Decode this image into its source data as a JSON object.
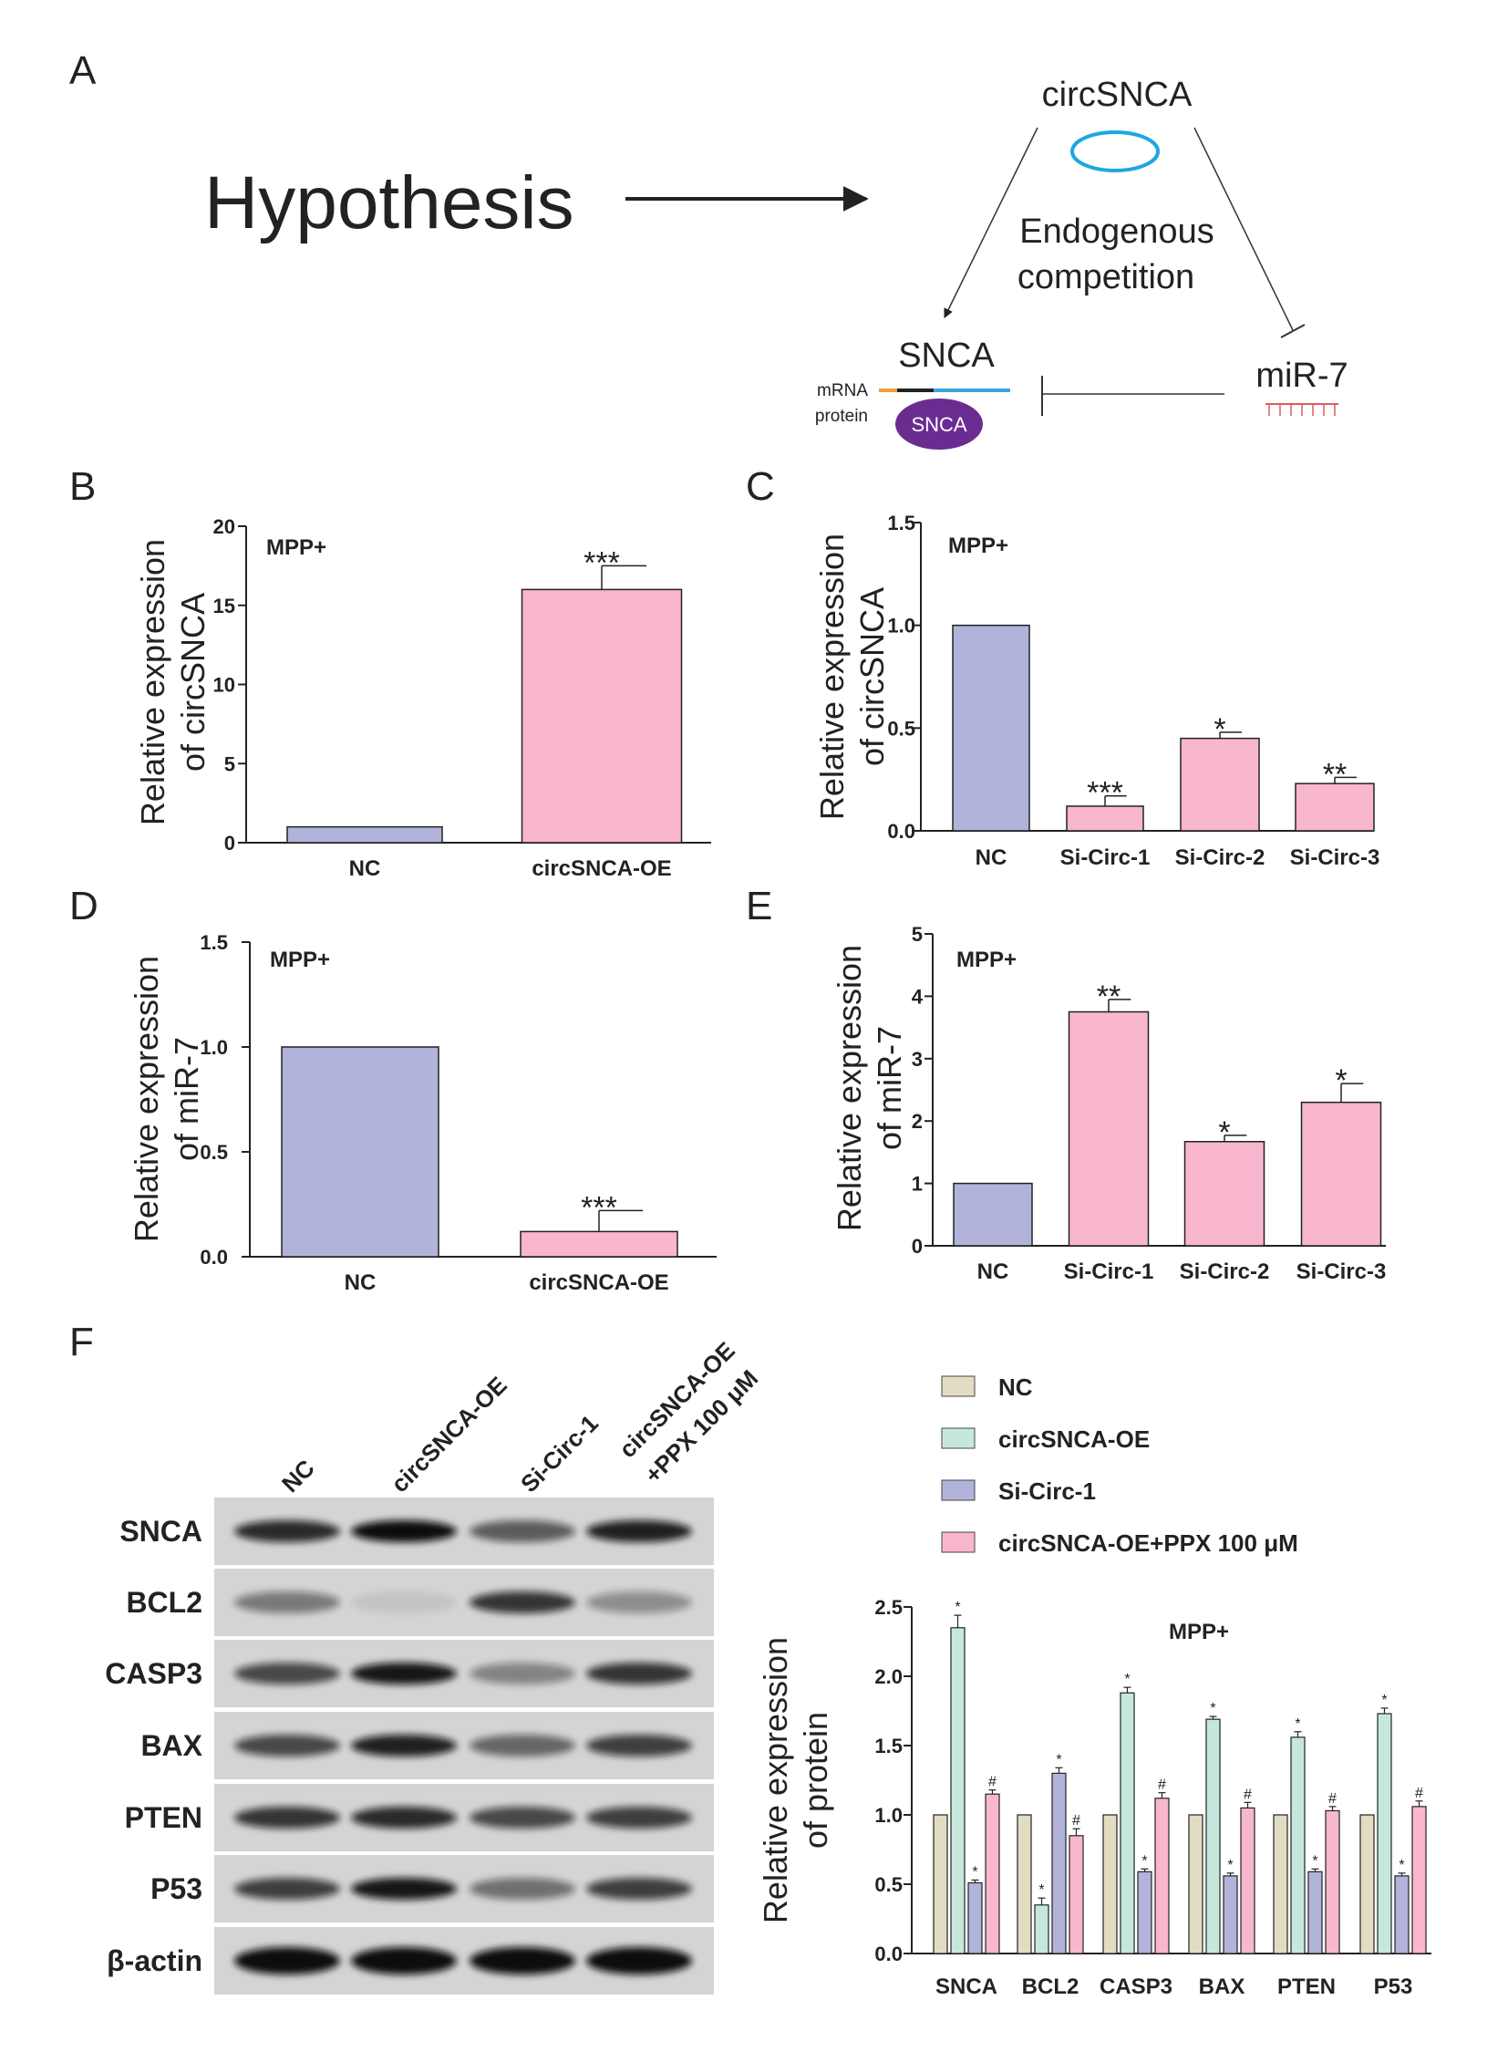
{
  "panel_letters": {
    "A": "A",
    "B": "B",
    "C": "C",
    "D": "D",
    "E": "E",
    "F": "F"
  },
  "hypothesis": {
    "title": "Hypothesis",
    "circ": "circSNCA",
    "competition_line1": "Endogenous",
    "competition_line2": "competition",
    "snca": "SNCA",
    "mirna": "miR-7",
    "mrna_label": "mRNA",
    "protein_label": "protein",
    "protein_blob": "SNCA",
    "colors": {
      "circ_ring": "#1ea7e1",
      "protein": "#6b2c91",
      "mrna_left": "#f5a033",
      "mrna_right": "#3aa6dd",
      "mirna_teeth": "#e05a5a"
    }
  },
  "colors": {
    "nc_bar": "#b1b3da",
    "treat_bar": "#f8b6cf",
    "nc_f": "#e2dcc3",
    "oe_f": "#c6e8dc",
    "si_f": "#b1b3da",
    "ppx_f": "#f8b6cf"
  },
  "chart_data": [
    {
      "id": "B",
      "type": "bar",
      "title": "MPP+",
      "ylabel_lines": [
        "Relative expression",
        "of circSNCA"
      ],
      "categories": [
        "NC",
        "circSNCA-OE"
      ],
      "values": [
        1.0,
        16.0
      ],
      "errors": [
        0,
        1.5
      ],
      "significance": [
        "",
        "***"
      ],
      "ylim": [
        0,
        20
      ],
      "yticks": [
        "0",
        "5",
        "10",
        "15",
        "20"
      ]
    },
    {
      "id": "C",
      "type": "bar",
      "title": "MPP+",
      "ylabel_lines": [
        "Relative expression",
        "of circSNCA"
      ],
      "categories": [
        "NC",
        "Si-Circ-1",
        "Si-Circ-2",
        "Si-Circ-3"
      ],
      "values": [
        1.0,
        0.12,
        0.45,
        0.23
      ],
      "errors": [
        0,
        0.05,
        0.03,
        0.03
      ],
      "significance": [
        "",
        "***",
        "*",
        "**"
      ],
      "ylim": [
        0,
        1.5
      ],
      "yticks": [
        "0.0",
        "0.5",
        "1.0",
        "1.5"
      ]
    },
    {
      "id": "D",
      "type": "bar",
      "title": "MPP+",
      "ylabel_lines": [
        "Relative expression",
        "of miR-7"
      ],
      "categories": [
        "NC",
        "circSNCA-OE"
      ],
      "values": [
        1.0,
        0.12
      ],
      "errors": [
        0,
        0.1
      ],
      "significance": [
        "",
        "***"
      ],
      "ylim": [
        0,
        1.5
      ],
      "yticks": [
        "0.0",
        "0.5",
        "1.0",
        "1.5"
      ]
    },
    {
      "id": "E",
      "type": "bar",
      "title": "MPP+",
      "ylabel_lines": [
        "Relative expression",
        "of miR-7"
      ],
      "categories": [
        "NC",
        "Si-Circ-1",
        "Si-Circ-2",
        "Si-Circ-3"
      ],
      "values": [
        1.0,
        3.75,
        1.67,
        2.3
      ],
      "errors": [
        0,
        0.2,
        0.1,
        0.3
      ],
      "significance": [
        "",
        "**",
        "*",
        "*"
      ],
      "ylim": [
        0,
        5
      ],
      "yticks": [
        "0",
        "1",
        "2",
        "3",
        "4",
        "5"
      ]
    },
    {
      "id": "F",
      "type": "bar",
      "title": "MPP+",
      "ylabel_lines": [
        "Relative expression",
        "of protein"
      ],
      "categories": [
        "SNCA",
        "BCL2",
        "CASP3",
        "BAX",
        "PTEN",
        "P53"
      ],
      "series": [
        {
          "name": "NC",
          "values": [
            1.0,
            1.0,
            1.0,
            1.0,
            1.0,
            1.0
          ],
          "errors": [
            0,
            0,
            0,
            0,
            0,
            0
          ],
          "sig": [
            "",
            "",
            "",
            "",
            "",
            ""
          ]
        },
        {
          "name": "circSNCA-OE",
          "values": [
            2.35,
            0.35,
            1.88,
            1.69,
            1.56,
            1.73
          ],
          "errors": [
            0.09,
            0.05,
            0.04,
            0.02,
            0.04,
            0.04
          ],
          "sig": [
            "*",
            "*",
            "*",
            "*",
            "*",
            "*"
          ]
        },
        {
          "name": "Si-Circ-1",
          "values": [
            0.51,
            1.3,
            0.59,
            0.56,
            0.59,
            0.56
          ],
          "errors": [
            0.02,
            0.04,
            0.02,
            0.02,
            0.02,
            0.02
          ],
          "sig": [
            "*",
            "*",
            "*",
            "*",
            "*",
            "*"
          ]
        },
        {
          "name": "circSNCA-OE+PPX 100 μM",
          "values": [
            1.15,
            0.85,
            1.12,
            1.05,
            1.03,
            1.06
          ],
          "errors": [
            0.03,
            0.05,
            0.04,
            0.04,
            0.03,
            0.04
          ],
          "sig": [
            "#",
            "#",
            "#",
            "#",
            "#",
            "#"
          ]
        }
      ],
      "ylim": [
        0,
        2.5
      ],
      "yticks": [
        "0.0",
        "0.5",
        "1.0",
        "1.5",
        "2.0",
        "2.5"
      ],
      "legend": "top"
    }
  ],
  "blot": {
    "lanes": [
      "NC",
      "circSNCA-OE",
      "Si-Circ-1"
    ],
    "lane4_line1": "circSNCA-OE",
    "lane4_line2": "+PPX 100 μM",
    "proteins": [
      "SNCA",
      "BCL2",
      "CASP3",
      "BAX",
      "PTEN",
      "P53",
      "β-actin"
    ],
    "intensity": [
      [
        0.85,
        1.0,
        0.6,
        0.9
      ],
      [
        0.45,
        0.08,
        0.8,
        0.35
      ],
      [
        0.7,
        0.95,
        0.4,
        0.8
      ],
      [
        0.7,
        0.9,
        0.55,
        0.75
      ],
      [
        0.8,
        0.85,
        0.7,
        0.75
      ],
      [
        0.75,
        0.95,
        0.5,
        0.75
      ],
      [
        1.0,
        1.0,
        1.0,
        1.0
      ]
    ]
  }
}
